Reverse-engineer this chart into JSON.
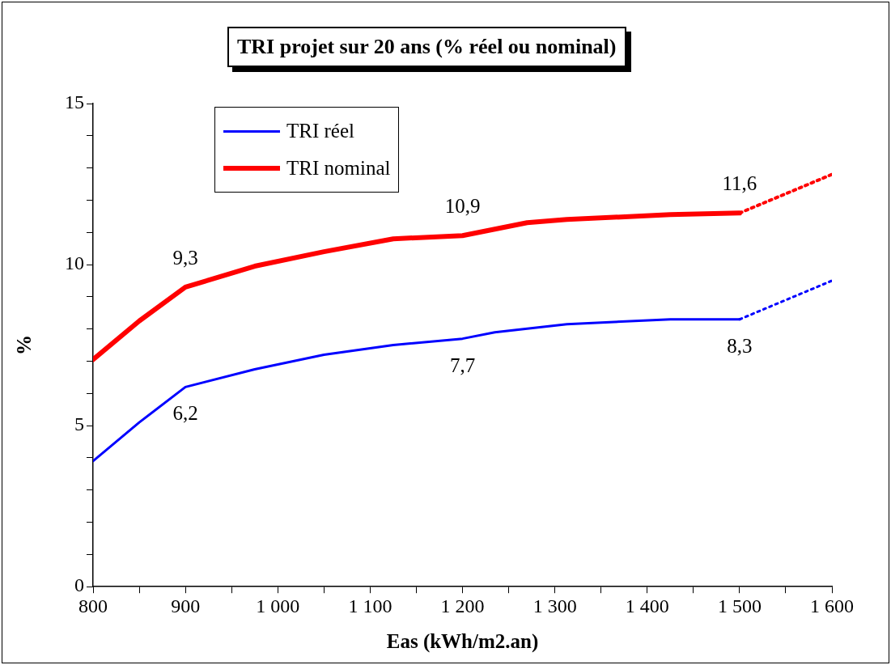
{
  "chart_data": {
    "type": "line",
    "title": "TRI projet sur 20 ans (% réel ou nominal)",
    "xlabel": "Eas (kWh/m2.an)",
    "ylabel": "%",
    "xlim": [
      800,
      1600
    ],
    "xticks": [
      800,
      {
        "value": 850,
        "label": null
      },
      900,
      {
        "value": 950,
        "label": null
      },
      {
        "value": 1000,
        "label": "1 000"
      },
      {
        "value": 1050,
        "label": null
      },
      {
        "value": 1100,
        "label": "1 100"
      },
      {
        "value": 1150,
        "label": null
      },
      {
        "value": 1200,
        "label": "1 200"
      },
      {
        "value": 1250,
        "label": null
      },
      {
        "value": 1300,
        "label": "1 300"
      },
      {
        "value": 1350,
        "label": null
      },
      {
        "value": 1400,
        "label": "1 400"
      },
      {
        "value": 1450,
        "label": null
      },
      {
        "value": 1500,
        "label": "1 500"
      },
      {
        "value": 1550,
        "label": null
      },
      {
        "value": 1600,
        "label": "1 600"
      }
    ],
    "ylim": [
      0,
      15
    ],
    "yticks": [
      0,
      {
        "value": 1,
        "label": null
      },
      {
        "value": 2,
        "label": null
      },
      {
        "value": 3,
        "label": null
      },
      {
        "value": 4,
        "label": null
      },
      5,
      {
        "value": 6,
        "label": null
      },
      {
        "value": 7,
        "label": null
      },
      {
        "value": 8,
        "label": null
      },
      {
        "value": 9,
        "label": null
      },
      10,
      {
        "value": 11,
        "label": null
      },
      {
        "value": 12,
        "label": null
      },
      {
        "value": 13,
        "label": null
      },
      {
        "value": 14,
        "label": null
      },
      15
    ],
    "grid": false,
    "legend": "top left",
    "marker": "none",
    "series": [
      {
        "name": "TRI réel",
        "color": "#0000ff",
        "line_style": "solid",
        "x": [
          800,
          850,
          900,
          975,
          1050,
          1125,
          1200,
          1235,
          1313,
          1425,
          1500
        ],
        "values": [
          3.9,
          5.1,
          6.2,
          6.75,
          7.2,
          7.5,
          7.7,
          7.9,
          8.15,
          8.3,
          8.3
        ],
        "value_labels": [
          null,
          null,
          "6,2",
          null,
          null,
          null,
          "7,7",
          null,
          null,
          null,
          "8,3"
        ]
      },
      {
        "name": "TRI nominal",
        "color": "#ff0000",
        "line_style": "solid",
        "x": [
          800,
          850,
          900,
          975,
          1050,
          1125,
          1200,
          1235,
          1270,
          1313,
          1425,
          1500
        ],
        "values": [
          7.05,
          8.25,
          9.3,
          9.95,
          10.4,
          10.8,
          10.9,
          11.1,
          11.3,
          11.4,
          11.55,
          11.6
        ],
        "value_labels": [
          null,
          null,
          "9,3",
          null,
          null,
          null,
          "10,9",
          null,
          null,
          null,
          null,
          "11,6"
        ]
      },
      {
        "color": "#0000ff",
        "line_style": "dotted",
        "x": [
          1500,
          1600
        ],
        "values": [
          8.3,
          9.5
        ]
      },
      {
        "color": "#ff0000",
        "line_style": "dotted",
        "x": [
          1500,
          1600
        ],
        "values": [
          11.6,
          12.8
        ]
      }
    ]
  }
}
